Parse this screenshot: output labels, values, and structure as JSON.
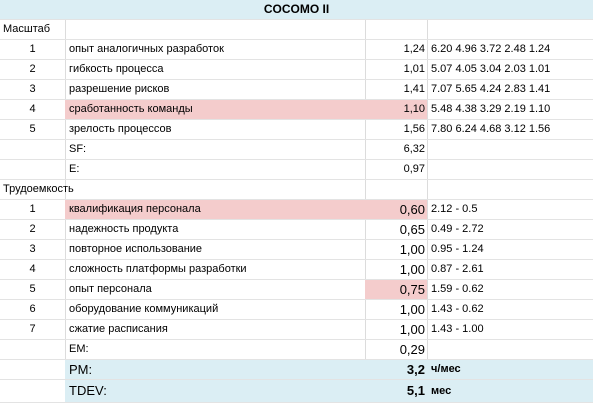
{
  "title": "COCOMO II",
  "scale_section": {
    "label": "Масштаб",
    "rows": [
      {
        "n": "1",
        "name": "опыт аналогичных разработок",
        "value": "1,24",
        "extra": "6.20  4.96  3.72  2.48  1.24"
      },
      {
        "n": "2",
        "name": "гибкость процесса",
        "value": "1,01",
        "extra": "5.07  4.05  3.04  2.03  1.01"
      },
      {
        "n": "3",
        "name": "разрешение рисков",
        "value": "1,41",
        "extra": "7.07  5.65  4.24  2.83  1.41"
      },
      {
        "n": "4",
        "name": "сработанность команды",
        "value": "1,10",
        "extra": "5.48  4.38  3.29  2.19  1.10"
      },
      {
        "n": "5",
        "name": "зрелость процессов",
        "value": "1,56",
        "extra": "7.80  6.24  4.68  3.12  1.56"
      }
    ],
    "sf_label": "SF:",
    "sf_value": "6,32",
    "e_label": "E:",
    "e_value": "0,97"
  },
  "effort_section": {
    "label": "Трудоемкость",
    "rows": [
      {
        "n": "1",
        "name": "квалификация персонала",
        "value": "0,60",
        "extra": "2.12 - 0.5"
      },
      {
        "n": "2",
        "name": "надежность продукта",
        "value": "0,65",
        "extra": "0.49 - 2.72"
      },
      {
        "n": "3",
        "name": "повторное использование",
        "value": "1,00",
        "extra": "0.95 - 1.24"
      },
      {
        "n": "4",
        "name": "сложность платформы разработки",
        "value": "1,00",
        "extra": "0.87 - 2.61"
      },
      {
        "n": "5",
        "name": "опыт персонала",
        "value": "0,75",
        "extra": "1.59 - 0.62"
      },
      {
        "n": "6",
        "name": "оборудование коммуникаций",
        "value": "1,00",
        "extra": "1.43 - 0.62"
      },
      {
        "n": "7",
        "name": "сжатие расписания",
        "value": "1,00",
        "extra": "1.43 - 1.00"
      }
    ],
    "em_label": "EM:",
    "em_value": "0,29"
  },
  "results": {
    "pm_label": "PM:",
    "pm_value": "3,2",
    "pm_unit": "ч/мес",
    "tdev_label": "TDEV:",
    "tdev_value": "5,1",
    "tdev_unit": "мес"
  },
  "colors": {
    "header_bg": "#dbeef4",
    "highlight": "#f4cccc"
  }
}
